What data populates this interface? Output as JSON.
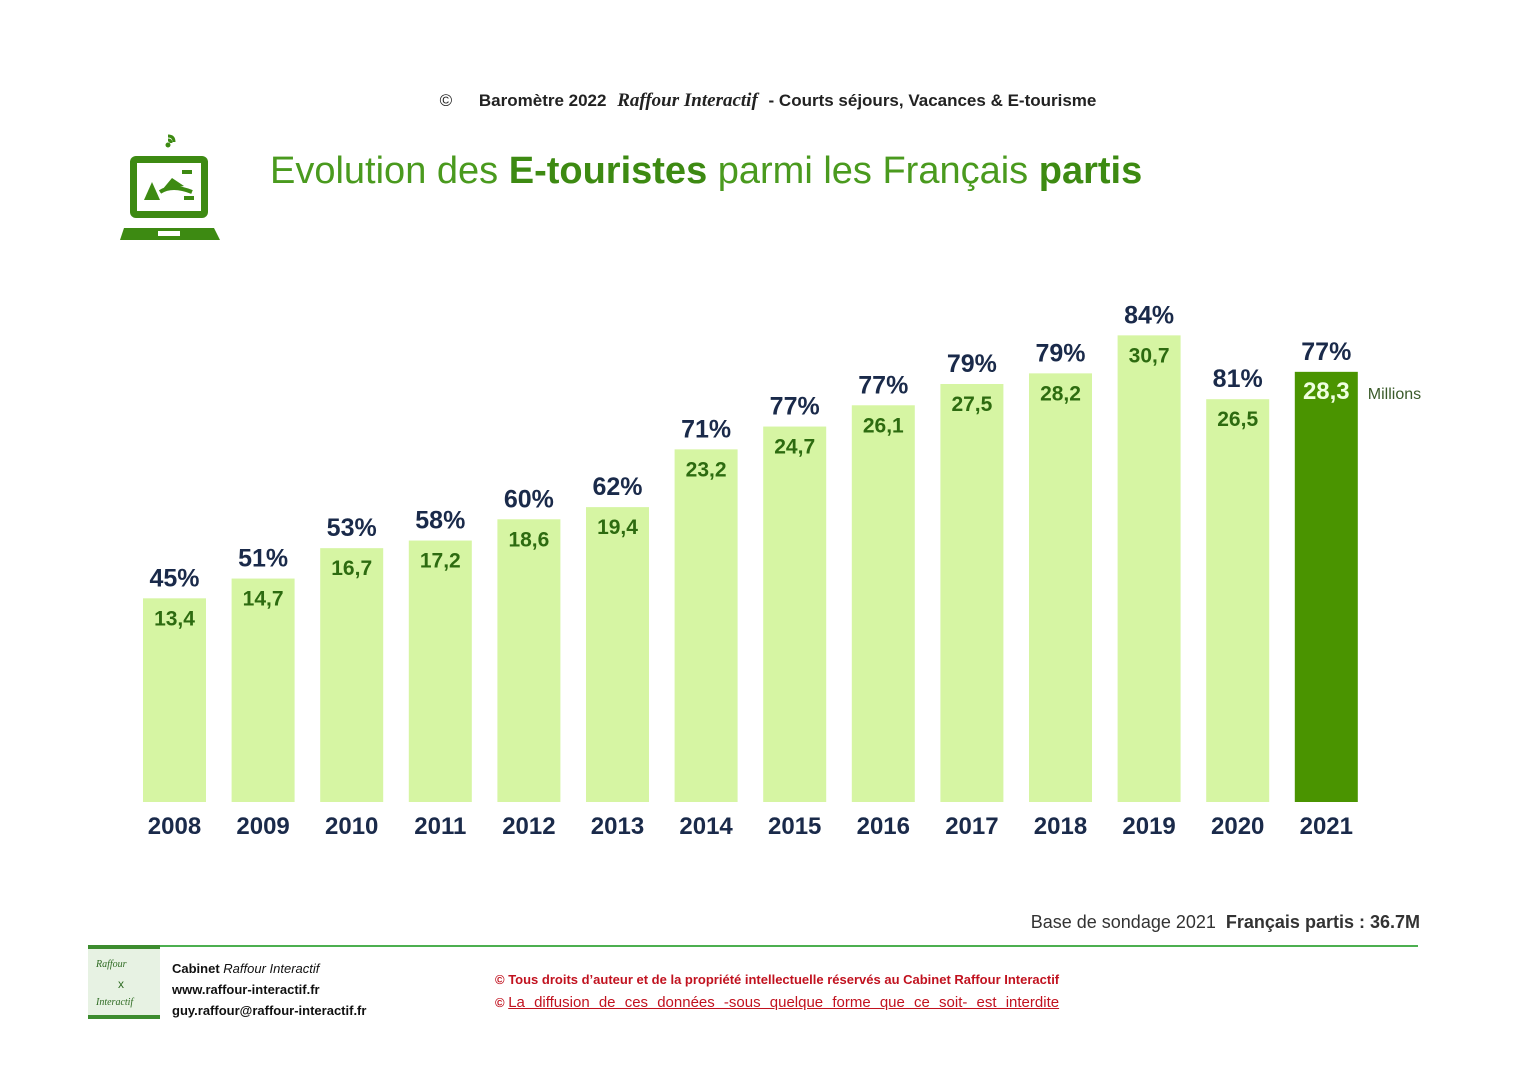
{
  "header": {
    "copyright_symbol": "©",
    "barometer": "Baromètre 2022",
    "brand": "Raffour Interactif",
    "subtitle": "-  Courts séjours, Vacances & E-tourisme"
  },
  "title": {
    "part1": "Evolution des ",
    "part2": "E-touristes",
    "part3": " parmi les Français ",
    "part4": "partis"
  },
  "chart_data": {
    "type": "bar",
    "title": "Evolution des E-touristes parmi les Français partis",
    "categories": [
      "2008",
      "2009",
      "2010",
      "2011",
      "2012",
      "2013",
      "2014",
      "2015",
      "2016",
      "2017",
      "2018",
      "2019",
      "2020",
      "2021"
    ],
    "series": [
      {
        "name": "E-touristes (Millions)",
        "values": [
          13.4,
          14.7,
          16.7,
          17.2,
          18.6,
          19.4,
          23.2,
          24.7,
          26.1,
          27.5,
          28.2,
          30.7,
          26.5,
          28.3
        ]
      }
    ],
    "value_labels": [
      "13,4",
      "14,7",
      "16,7",
      "17,2",
      "18,6",
      "19,4",
      "23,2",
      "24,7",
      "26,1",
      "27,5",
      "28,2",
      "30,7",
      "26,5",
      "28,3"
    ],
    "percent_labels": [
      "45%",
      "51%",
      "53%",
      "58%",
      "60%",
      "62%",
      "71%",
      "77%",
      "77%",
      "79%",
      "79%",
      "84%",
      "81%",
      "77%"
    ],
    "unit_label": "Millions",
    "highlight_index": 13,
    "colors": {
      "bar": "#d6f5a3",
      "highlight": "#4a9400",
      "value_text": "#2d6b10",
      "highlight_text": "#f0ffe0",
      "pct_text": "#1a2a4a",
      "year_text": "#1a2a4a"
    },
    "xlabel": "",
    "ylabel": "",
    "ylim": [
      0,
      35
    ]
  },
  "footer": {
    "base_label": "Base de sondage 2021",
    "base_value": "Français partis  : 36.7M",
    "logo_top": "Raffour",
    "logo_mid": "x",
    "logo_bottom": "Interactif",
    "cabinet_prefix": "Cabinet ",
    "cabinet_name": "Raffour Interactif",
    "website": "www.raffour-interactif.fr",
    "email": "guy.raffour@raffour-interactif.fr",
    "rights_line1": "© Tous droits d’auteur et de la propriété intellectuelle réservés au Cabinet Raffour Interactif",
    "rights_symbol": "©",
    "rights_line2": "La diffusion de ces données -sous quelque forme que ce soit- est interdite"
  }
}
